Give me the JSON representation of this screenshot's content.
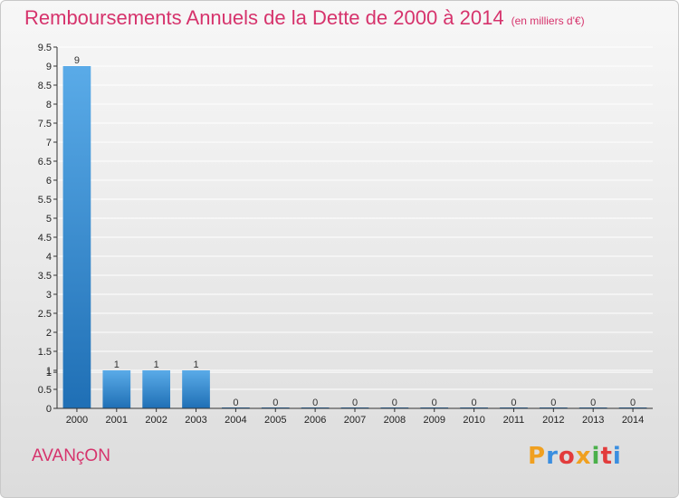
{
  "title": "Remboursements Annuels de la Dette de 2000 à 2014",
  "subtitle": "(en milliers d'€)",
  "commune": "AVANçON",
  "logo": "Proxiti",
  "colors": {
    "title": "#d6336c",
    "bar_light": "#5aabe8",
    "bar_dark": "#1f6fb5",
    "grid": "#ffffff",
    "logo": [
      "#f0a020",
      "#3a8ee0",
      "#e23c3c",
      "#f0a020",
      "#4ab04a",
      "#e23c3c",
      "#3a8ee0"
    ]
  },
  "chart_data": {
    "type": "bar",
    "categories": [
      "2000",
      "2001",
      "2002",
      "2003",
      "2004",
      "2005",
      "2006",
      "2007",
      "2008",
      "2009",
      "2010",
      "2011",
      "2012",
      "2013",
      "2014"
    ],
    "values": [
      9,
      1,
      1,
      1,
      0,
      0,
      0,
      0,
      0,
      0,
      0,
      0,
      0,
      0,
      0
    ],
    "data_labels": [
      "9",
      "1",
      "1",
      "1",
      "0",
      "0",
      "0",
      "0",
      "0",
      "0",
      "0",
      "0",
      "0",
      "0",
      "0"
    ],
    "ylim": [
      0,
      9.5
    ],
    "yticks": [
      "0",
      "0.5",
      "1",
      "1",
      "1.5",
      "2",
      "2.5",
      "3",
      "3.5",
      "4",
      "4.5",
      "5",
      "5.5",
      "6",
      "6.5",
      "7",
      "7.5",
      "8",
      "8.5",
      "9",
      "9.5"
    ],
    "ytick_values": [
      0,
      0.5,
      0.95,
      1,
      1.5,
      2,
      2.5,
      3,
      3.5,
      4,
      4.5,
      5,
      5.5,
      6,
      6.5,
      7,
      7.5,
      8,
      8.5,
      9,
      9.5
    ],
    "grid": true
  }
}
